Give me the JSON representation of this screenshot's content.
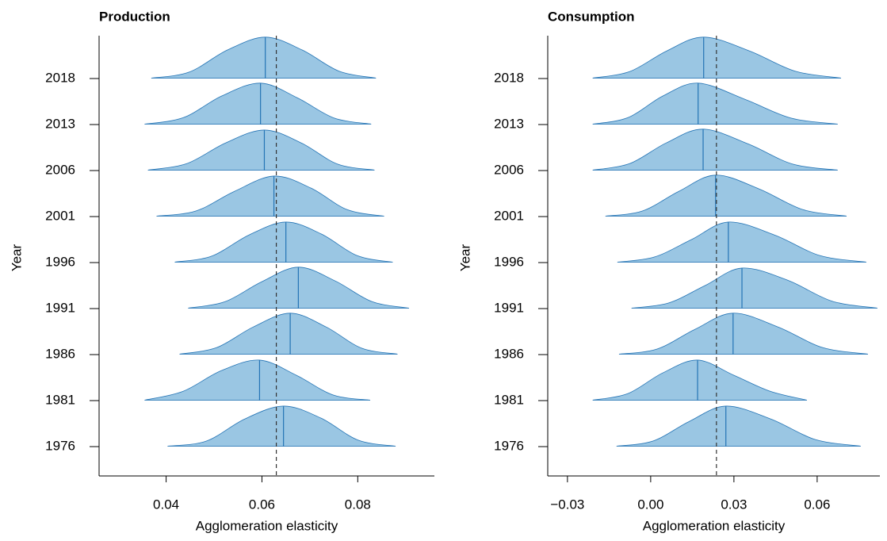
{
  "chart_data": [
    {
      "type": "ridgeline",
      "title": "Production",
      "xlabel": "Agglomeration elasticity",
      "ylabel": "Year",
      "fill": "#9ac6e3",
      "stroke": "#2474b5",
      "xlim": [
        0.026,
        0.096
      ],
      "xticks": [
        0.04,
        0.06,
        0.08
      ],
      "reference": 0.063,
      "categories": [
        "1976",
        "1981",
        "1986",
        "1991",
        "1996",
        "2001",
        "2006",
        "2013",
        "2018"
      ],
      "ridges": [
        {
          "x": [
            0.0403,
            0.0484,
            0.0564,
            0.0645,
            0.0723,
            0.0801,
            0.0879
          ],
          "density": [
            0.01,
            0.12,
            0.6,
            0.88,
            0.62,
            0.14,
            0.01
          ],
          "median": 0.0645
        },
        {
          "x": [
            0.0355,
            0.0435,
            0.0515,
            0.0595,
            0.0672,
            0.0749,
            0.0826
          ],
          "density": [
            0.01,
            0.2,
            0.65,
            0.88,
            0.55,
            0.12,
            0.01
          ],
          "median": 0.0595
        },
        {
          "x": [
            0.0428,
            0.0505,
            0.0582,
            0.0659,
            0.0734,
            0.0808,
            0.0883
          ],
          "density": [
            0.01,
            0.15,
            0.6,
            0.9,
            0.6,
            0.14,
            0.01
          ],
          "median": 0.0659
        },
        {
          "x": [
            0.0446,
            0.0523,
            0.0599,
            0.0676,
            0.0753,
            0.083,
            0.0907
          ],
          "density": [
            0.01,
            0.15,
            0.58,
            0.9,
            0.6,
            0.15,
            0.01
          ],
          "median": 0.0676
        },
        {
          "x": [
            0.0418,
            0.0495,
            0.0573,
            0.065,
            0.0724,
            0.0799,
            0.0873
          ],
          "density": [
            0.01,
            0.14,
            0.6,
            0.88,
            0.62,
            0.15,
            0.01
          ],
          "median": 0.065
        },
        {
          "x": [
            0.038,
            0.0462,
            0.0543,
            0.0625,
            0.0702,
            0.0778,
            0.0855
          ],
          "density": [
            0.01,
            0.12,
            0.55,
            0.88,
            0.62,
            0.15,
            0.01
          ],
          "median": 0.0625
        },
        {
          "x": [
            0.0362,
            0.0443,
            0.0524,
            0.0605,
            0.0682,
            0.0758,
            0.0835
          ],
          "density": [
            0.01,
            0.15,
            0.6,
            0.88,
            0.6,
            0.14,
            0.01
          ],
          "median": 0.0605
        },
        {
          "x": [
            0.0355,
            0.0436,
            0.0516,
            0.0597,
            0.0674,
            0.0751,
            0.0828
          ],
          "density": [
            0.01,
            0.15,
            0.62,
            0.9,
            0.58,
            0.14,
            0.01
          ],
          "median": 0.0597
        },
        {
          "x": [
            0.0369,
            0.0448,
            0.0528,
            0.0607,
            0.0684,
            0.0761,
            0.0838
          ],
          "density": [
            0.01,
            0.14,
            0.62,
            0.9,
            0.62,
            0.16,
            0.01
          ],
          "median": 0.0607
        }
      ]
    },
    {
      "type": "ridgeline",
      "title": "Consumption",
      "xlabel": "Agglomeration elasticity",
      "ylabel": "Year",
      "fill": "#9ac6e3",
      "stroke": "#2474b5",
      "xlim": [
        -0.0371,
        0.0826
      ],
      "xticks": [
        {
          "value": -0.03,
          "label": "−0.03"
        },
        {
          "value": 0,
          "label": "0.00"
        },
        0.03,
        0.06
      ],
      "reference": 0.0237,
      "categories": [
        "1976",
        "1981",
        "1986",
        "1991",
        "1996",
        "2001",
        "2006",
        "2013",
        "2018"
      ],
      "ridges": [
        {
          "x": [
            -0.0123,
            0.0008,
            0.014,
            0.0271,
            0.0433,
            0.0595,
            0.0757
          ],
          "density": [
            0.01,
            0.12,
            0.55,
            0.88,
            0.6,
            0.15,
            0.01
          ],
          "median": 0.0271
        },
        {
          "x": [
            -0.0209,
            -0.0083,
            0.0043,
            0.0169,
            0.03,
            0.0432,
            0.0563
          ],
          "density": [
            0.01,
            0.15,
            0.6,
            0.88,
            0.55,
            0.2,
            0.01
          ],
          "median": 0.0169
        },
        {
          "x": [
            -0.0114,
            0.0023,
            0.016,
            0.0297,
            0.0459,
            0.0621,
            0.0783
          ],
          "density": [
            0.01,
            0.12,
            0.55,
            0.9,
            0.6,
            0.15,
            0.01
          ],
          "median": 0.0297
        },
        {
          "x": [
            -0.0069,
            0.0064,
            0.0196,
            0.0329,
            0.0492,
            0.0654,
            0.0817
          ],
          "density": [
            0.01,
            0.12,
            0.5,
            0.88,
            0.62,
            0.16,
            0.01
          ],
          "median": 0.0329
        },
        {
          "x": [
            -0.012,
            0.0013,
            0.0147,
            0.028,
            0.0446,
            0.0611,
            0.0777
          ],
          "density": [
            0.01,
            0.12,
            0.5,
            0.88,
            0.6,
            0.15,
            0.01
          ],
          "median": 0.028
        },
        {
          "x": [
            -0.0163,
            -0.003,
            0.0102,
            0.0234,
            0.0391,
            0.0549,
            0.0706
          ],
          "density": [
            0.01,
            0.12,
            0.55,
            0.9,
            0.6,
            0.15,
            0.01
          ],
          "median": 0.0234
        },
        {
          "x": [
            -0.0209,
            -0.0076,
            0.0056,
            0.0189,
            0.0351,
            0.0512,
            0.0674
          ],
          "density": [
            0.01,
            0.15,
            0.6,
            0.9,
            0.58,
            0.14,
            0.01
          ],
          "median": 0.0189
        },
        {
          "x": [
            -0.0209,
            -0.0082,
            0.0044,
            0.0171,
            0.0339,
            0.0506,
            0.0674
          ],
          "density": [
            0.01,
            0.15,
            0.62,
            0.9,
            0.55,
            0.14,
            0.01
          ],
          "median": 0.0171
        },
        {
          "x": [
            -0.0209,
            -0.0076,
            0.0058,
            0.0191,
            0.0356,
            0.0521,
            0.0686
          ],
          "density": [
            0.01,
            0.15,
            0.6,
            0.9,
            0.6,
            0.16,
            0.01
          ],
          "median": 0.0191
        }
      ]
    }
  ]
}
